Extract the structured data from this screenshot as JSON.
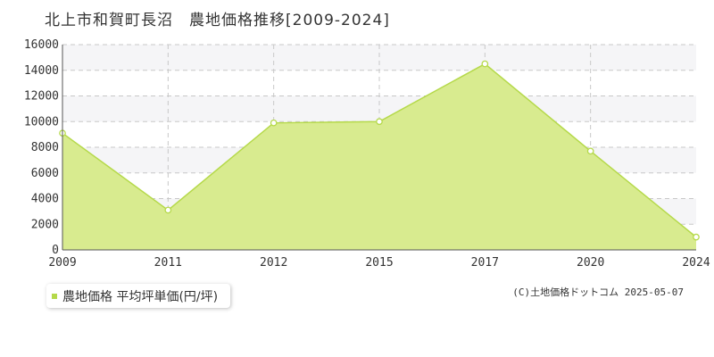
{
  "title": "北上市和賀町長沼　農地価格推移[2009-2024]",
  "legend": {
    "label": "農地価格 平均坪単価(円/坪)"
  },
  "credit": "(C)土地価格ドットコム 2025-05-07",
  "colors": {
    "fill": "#d8eb8f",
    "line": "#b5d94a",
    "marker_fill": "#ffffff",
    "band": "#f5f5f7",
    "grid": "#c8c8c8"
  },
  "chart_data": {
    "type": "area",
    "title": "北上市和賀町長沼　農地価格推移[2009-2024]",
    "categories": [
      "2009",
      "2011",
      "2012",
      "2015",
      "2017",
      "2020",
      "2024"
    ],
    "series": [
      {
        "name": "農地価格 平均坪単価(円/坪)",
        "values": [
          9100,
          3100,
          9900,
          10000,
          14500,
          7700,
          1000
        ]
      }
    ],
    "ylim": [
      0,
      16000
    ],
    "yticks": [
      0,
      2000,
      4000,
      6000,
      8000,
      10000,
      12000,
      14000,
      16000
    ],
    "grid": true,
    "legend_position": "bottom-left"
  }
}
